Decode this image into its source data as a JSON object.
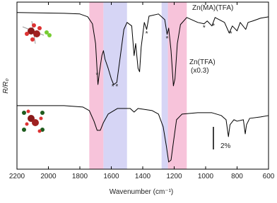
{
  "chart_data": {
    "type": "line",
    "x_label": "Wavenumber (cm⁻¹)",
    "y_label": "R/R₀",
    "xlim": [
      2200,
      600
    ],
    "xticks": [
      2200,
      2000,
      1800,
      1600,
      1400,
      1200,
      1000,
      800,
      600
    ],
    "ylim": [
      0,
      14.8
    ],
    "bands": [
      {
        "x0": 1740,
        "x1": 1650,
        "color": "#f7c3da"
      },
      {
        "x0": 1650,
        "x1": 1500,
        "color": "#d6d5f5"
      },
      {
        "x0": 1280,
        "x1": 1240,
        "color": "#d6d5f5"
      },
      {
        "x0": 1240,
        "x1": 1120,
        "color": "#f7c3da"
      }
    ],
    "series": [
      {
        "name": "Zn(MA)(TFA)",
        "color": "#000000",
        "x": [
          2200,
          1900,
          1800,
          1750,
          1720,
          1700,
          1685,
          1675,
          1660,
          1650,
          1640,
          1620,
          1600,
          1585,
          1565,
          1545,
          1520,
          1500,
          1470,
          1455,
          1445,
          1430,
          1420,
          1410,
          1390,
          1375,
          1360,
          1300,
          1260,
          1245,
          1235,
          1220,
          1205,
          1195,
          1180,
          1160,
          1120,
          1050,
          1010,
          990,
          960,
          940,
          880,
          850,
          830,
          800,
          780,
          745,
          730,
          700,
          650,
          600
        ],
        "values": [
          13.88,
          13.81,
          13.75,
          13.5,
          12.88,
          11.13,
          7.5,
          8.63,
          10.06,
          10.5,
          9.75,
          8.94,
          8.0,
          7.5,
          7.69,
          9.75,
          12.38,
          13.0,
          12.69,
          10.06,
          11.13,
          8.94,
          8.63,
          10.81,
          13.0,
          12.38,
          13.56,
          13.75,
          13.25,
          11.94,
          12.5,
          10.5,
          7.38,
          8.0,
          11.13,
          12.81,
          13.44,
          13.0,
          12.88,
          13.13,
          12.69,
          13.44,
          13.0,
          12.06,
          12.69,
          12.25,
          13.0,
          12.38,
          13.0,
          13.13,
          13.38,
          13.5
        ]
      },
      {
        "name": "Zn(TFA)",
        "color": "#000000",
        "x": [
          2200,
          1900,
          1780,
          1740,
          1710,
          1690,
          1670,
          1650,
          1620,
          1560,
          1480,
          1455,
          1430,
          1340,
          1300,
          1270,
          1250,
          1235,
          1220,
          1205,
          1185,
          1150,
          1050,
          960,
          900,
          870,
          855,
          845,
          820,
          800,
          760,
          748,
          740,
          720,
          650,
          600
        ],
        "values": [
          5.63,
          5.63,
          5.5,
          5.19,
          4.25,
          3.44,
          3.44,
          4.13,
          4.88,
          5.38,
          5.38,
          5.06,
          5.38,
          5.19,
          4.88,
          3.75,
          2.06,
          0.63,
          0.81,
          2.38,
          4.38,
          4.88,
          5.0,
          5.0,
          4.75,
          4.38,
          2.88,
          3.94,
          4.38,
          4.25,
          4.38,
          3.13,
          3.94,
          4.5,
          4.63,
          4.75
        ]
      }
    ],
    "annotations": [
      "(x0.3)"
    ],
    "markers": {
      "label": "*",
      "x": [
        1690,
        1590,
        1565,
        1375,
        1245,
        1010,
        950,
        840
      ]
    },
    "scale_bar": {
      "label": "2%",
      "value": 2
    }
  }
}
